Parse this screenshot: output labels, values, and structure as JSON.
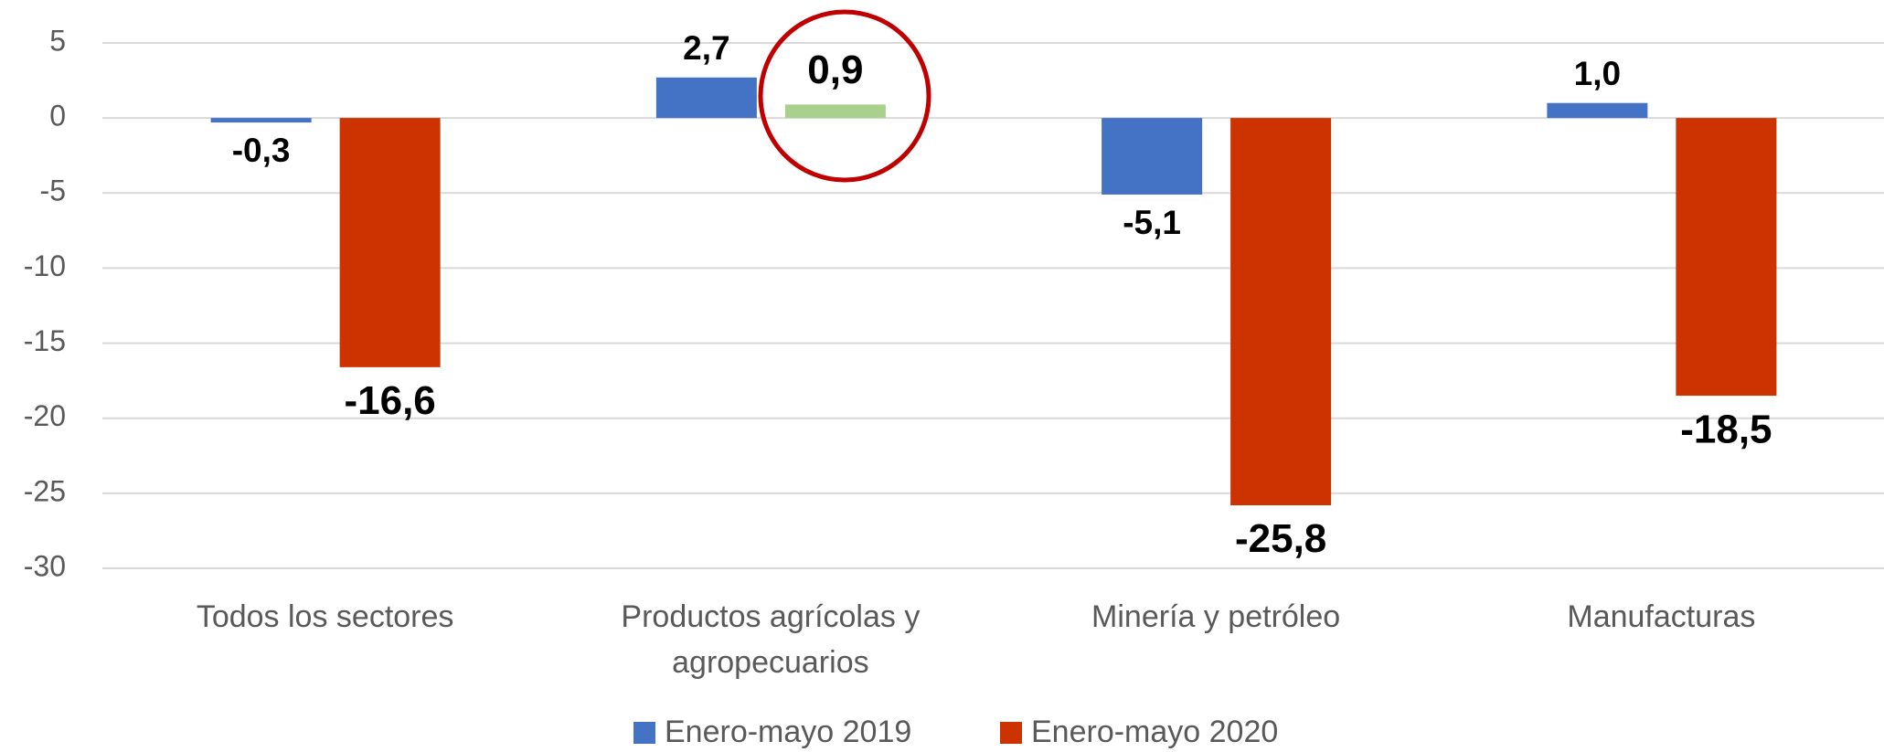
{
  "chart_data": {
    "type": "bar",
    "categories": [
      "Todos los sectores",
      "Productos agrícolas y agropecuarios",
      "Minería y petróleo",
      "Manufacturas"
    ],
    "series": [
      {
        "name": "Enero-mayo 2019",
        "color": "#4472c4",
        "values": [
          -0.3,
          2.7,
          -5.1,
          1.0
        ],
        "value_labels": [
          "-0,3",
          "2,7",
          "-5,1",
          "1,0"
        ]
      },
      {
        "name": "Enero-mayo 2020",
        "color": "#cc3300",
        "colors": [
          "#cc3300",
          "#a9d18e",
          "#cc3300",
          "#cc3300"
        ],
        "values": [
          -16.6,
          0.9,
          -25.8,
          -18.5
        ],
        "value_labels": [
          "-16,6",
          "0,9",
          "-25,8",
          "-18,5"
        ]
      }
    ],
    "ylim": [
      -30,
      5
    ],
    "yticks": [
      5,
      0,
      -5,
      -10,
      -15,
      -20,
      -25,
      -30
    ],
    "grid": true,
    "legend": "bottom"
  }
}
